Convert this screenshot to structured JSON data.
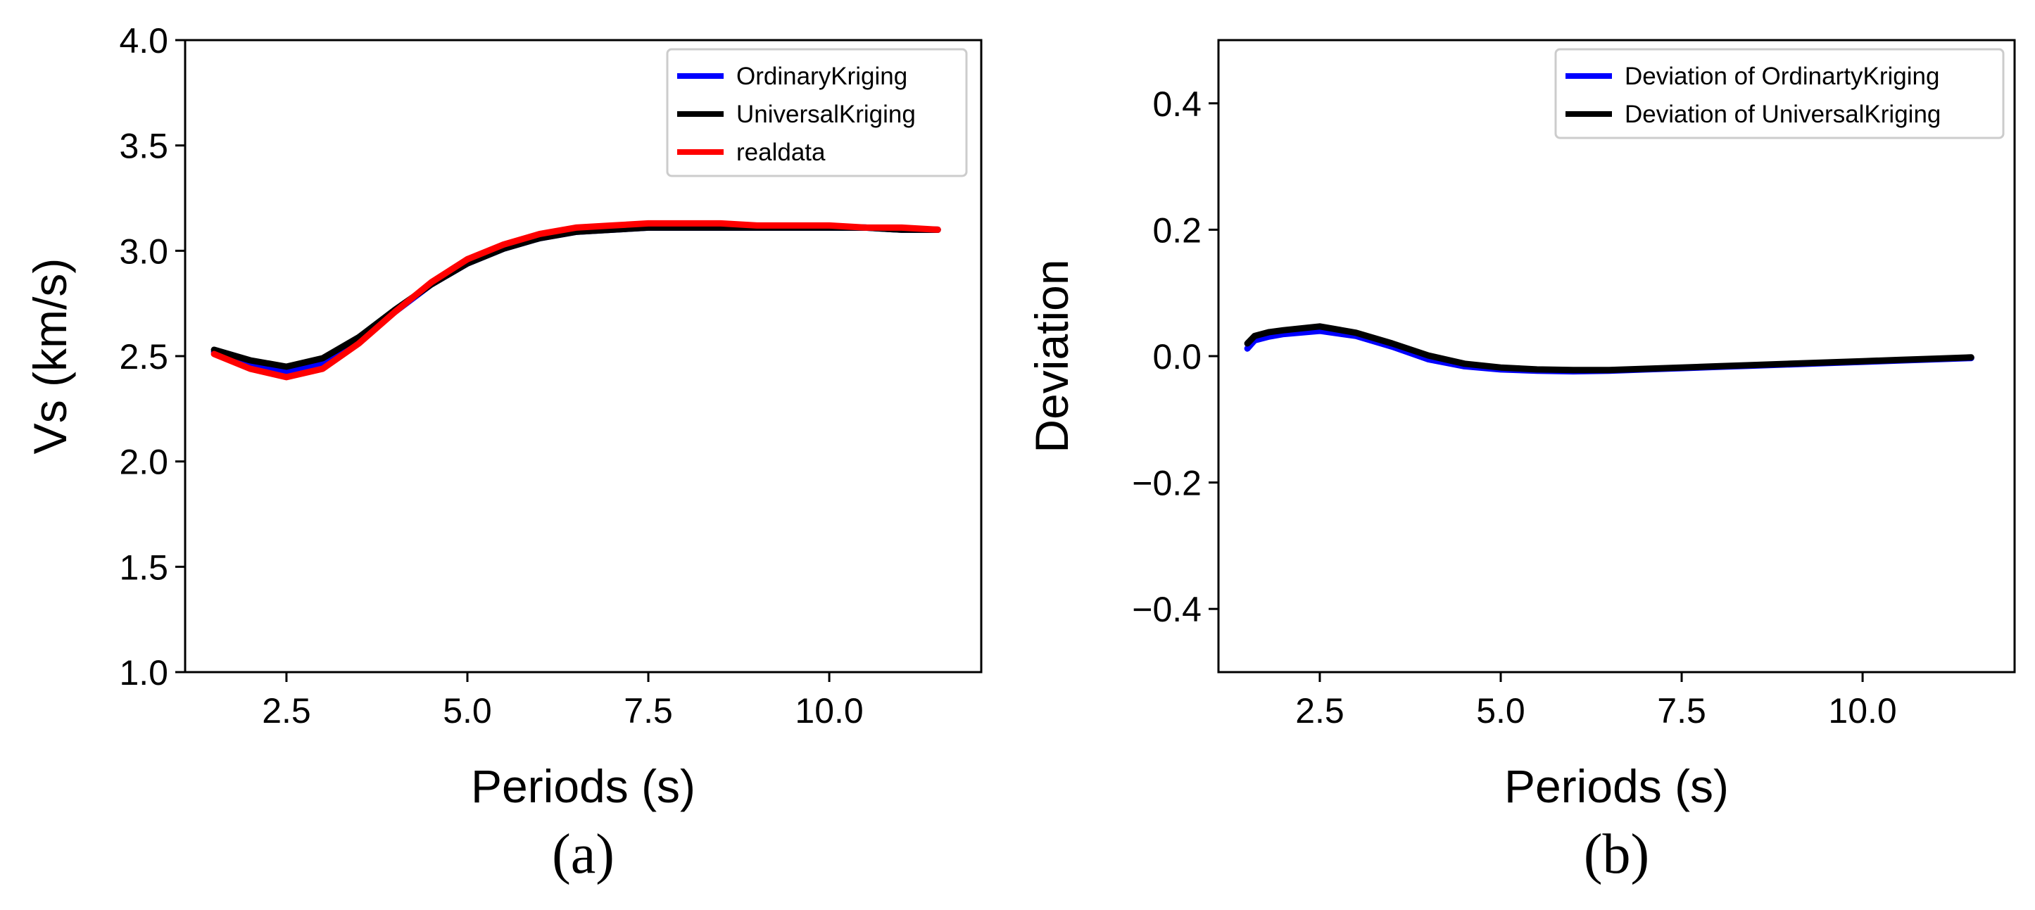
{
  "chart_data": [
    {
      "type": "line",
      "panel_label": "(a)",
      "xlabel": "Periods (s)",
      "ylabel": "Vs (km/s)",
      "xlim": [
        1.1,
        12.1
      ],
      "ylim": [
        1.0,
        4.0
      ],
      "xticks": [
        2.5,
        5.0,
        7.5,
        10.0
      ],
      "xtick_labels": [
        "2.5",
        "5.0",
        "7.5",
        "10.0"
      ],
      "yticks": [
        1.0,
        1.5,
        2.0,
        2.5,
        3.0,
        3.5,
        4.0
      ],
      "ytick_labels": [
        "1.0",
        "1.5",
        "2.0",
        "2.5",
        "3.0",
        "3.5",
        "4.0"
      ],
      "legend_position": "top-right",
      "x": [
        1.5,
        2.0,
        2.5,
        3.0,
        3.5,
        4.0,
        4.5,
        5.0,
        5.5,
        6.0,
        6.5,
        7.0,
        7.5,
        8.0,
        8.5,
        9.0,
        9.5,
        10.0,
        10.5,
        11.0,
        11.5
      ],
      "series": [
        {
          "name": "OrdinaryKriging",
          "color": "#0000ff",
          "values": [
            2.52,
            2.47,
            2.43,
            2.47,
            2.58,
            2.71,
            2.84,
            2.94,
            3.01,
            3.06,
            3.09,
            3.1,
            3.11,
            3.11,
            3.11,
            3.11,
            3.11,
            3.11,
            3.11,
            3.1,
            3.1
          ]
        },
        {
          "name": "UniversalKriging",
          "color": "#000000",
          "values": [
            2.53,
            2.48,
            2.45,
            2.49,
            2.59,
            2.72,
            2.84,
            2.94,
            3.01,
            3.06,
            3.09,
            3.1,
            3.11,
            3.11,
            3.11,
            3.11,
            3.11,
            3.11,
            3.11,
            3.1,
            3.1
          ]
        },
        {
          "name": "realdata",
          "color": "#ff0000",
          "values": [
            2.51,
            2.44,
            2.4,
            2.44,
            2.56,
            2.71,
            2.85,
            2.96,
            3.03,
            3.08,
            3.11,
            3.12,
            3.13,
            3.13,
            3.13,
            3.12,
            3.12,
            3.12,
            3.11,
            3.11,
            3.1
          ]
        }
      ]
    },
    {
      "type": "line",
      "panel_label": "(b)",
      "xlabel": "Periods (s)",
      "ylabel": "Deviation",
      "xlim": [
        1.1,
        12.1
      ],
      "ylim": [
        -0.5,
        0.5
      ],
      "xticks": [
        2.5,
        5.0,
        7.5,
        10.0
      ],
      "xtick_labels": [
        "2.5",
        "5.0",
        "7.5",
        "10.0"
      ],
      "yticks": [
        -0.4,
        -0.2,
        0.0,
        0.2,
        0.4
      ],
      "ytick_labels": [
        "−0.4",
        "−0.2",
        "0.0",
        "0.2",
        "0.4"
      ],
      "legend_position": "top-right",
      "x": [
        1.5,
        1.6,
        1.8,
        2.0,
        2.5,
        3.0,
        3.5,
        4.0,
        4.5,
        5.0,
        5.5,
        6.0,
        6.5,
        7.0,
        7.5,
        8.0,
        8.5,
        9.0,
        9.5,
        10.0,
        10.5,
        11.0,
        11.5
      ],
      "series": [
        {
          "name": "Deviation of OrdinartyKriging",
          "color": "#0000ff",
          "values": [
            0.012,
            0.025,
            0.031,
            0.035,
            0.04,
            0.032,
            0.015,
            -0.005,
            -0.016,
            -0.021,
            -0.023,
            -0.024,
            -0.023,
            -0.021,
            -0.019,
            -0.017,
            -0.015,
            -0.013,
            -0.011,
            -0.009,
            -0.007,
            -0.005,
            -0.003
          ]
        },
        {
          "name": "Deviation of UniversalKriging",
          "color": "#000000",
          "values": [
            0.02,
            0.032,
            0.038,
            0.041,
            0.047,
            0.037,
            0.02,
            0.001,
            -0.012,
            -0.018,
            -0.021,
            -0.022,
            -0.022,
            -0.02,
            -0.018,
            -0.016,
            -0.014,
            -0.012,
            -0.01,
            -0.008,
            -0.006,
            -0.004,
            -0.002
          ]
        }
      ]
    }
  ]
}
